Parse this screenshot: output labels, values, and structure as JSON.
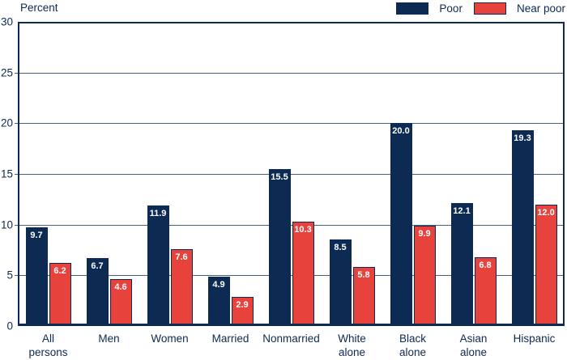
{
  "chart_data": {
    "type": "bar",
    "title": "",
    "ylabel": "Percent",
    "xlabel": "",
    "ylim": [
      0,
      30
    ],
    "yticks": [
      0,
      5,
      10,
      15,
      20,
      25,
      30
    ],
    "gridlines": [
      5,
      10,
      15,
      20,
      25
    ],
    "grid": true,
    "legend_position": "top-right",
    "value_labels": true,
    "categories": [
      "All persons",
      "Men",
      "Women",
      "Married",
      "Nonmarried",
      "White alone",
      "Black alone",
      "Asian alone",
      "Hispanic"
    ],
    "series": [
      {
        "name": "Poor",
        "color": "#0d2a52",
        "border": "#0d2a52",
        "values": [
          9.7,
          6.7,
          11.9,
          4.9,
          15.5,
          8.5,
          20.0,
          12.1,
          19.3
        ]
      },
      {
        "name": "Near poor",
        "color": "#e8423d",
        "border": "#0d2a52",
        "values": [
          6.2,
          4.6,
          7.6,
          2.9,
          10.3,
          5.8,
          9.9,
          6.8,
          12.0
        ]
      }
    ]
  },
  "colors": {
    "axis": "#0d2a52",
    "gridline": "#45617f",
    "text": "#0d2a52",
    "value_label_text": "#ffffff",
    "background": "#ffffff"
  }
}
